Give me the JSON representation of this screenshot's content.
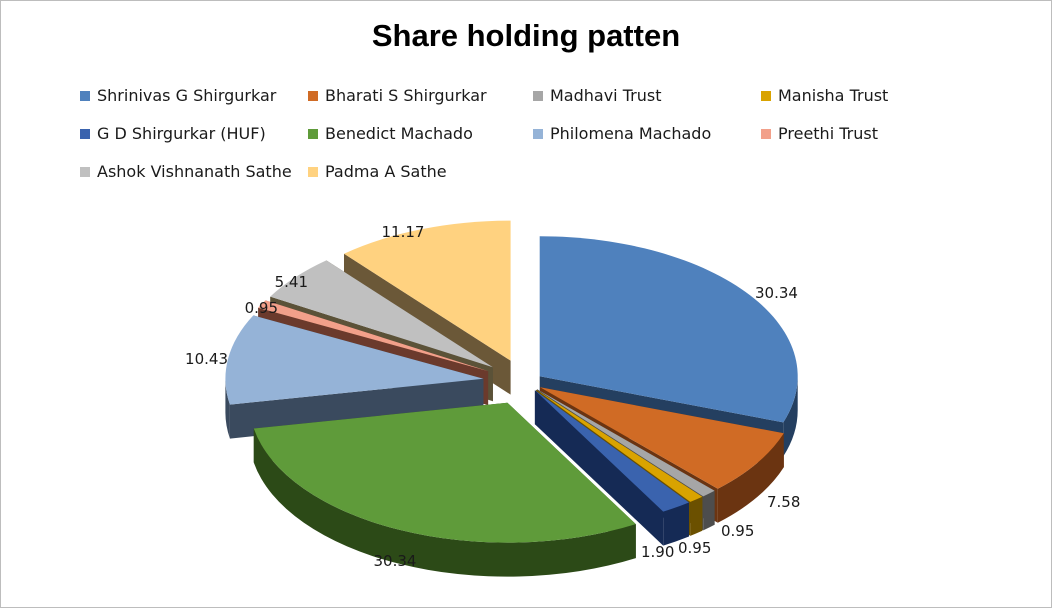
{
  "chart_data": {
    "type": "pie",
    "title": "Share holding patten",
    "legend_position": "top",
    "slices": [
      {
        "label": "Shrinivas G Shirgurkar",
        "value": 30.34,
        "value_label": "30.34",
        "color": "#4F81BD",
        "side": "#243F60",
        "explode": 0
      },
      {
        "label": "Bharati S Shirgurkar",
        "value": 7.58,
        "value_label": "7.58",
        "color": "#D06B25",
        "side": "#6B3411",
        "explode": 0
      },
      {
        "label": "Madhavi Trust",
        "value": 0.95,
        "value_label": "0.95",
        "color": "#A6A6A6",
        "side": "#4D4D4D",
        "explode": 0
      },
      {
        "label": "Manisha Trust",
        "value": 0.95,
        "value_label": "0.95",
        "color": "#D9A300",
        "side": "#6B5000",
        "explode": 0
      },
      {
        "label": "G D Shirgurkar (HUF)",
        "value": 1.9,
        "value_label": "1.90",
        "color": "#3A63AE",
        "side": "#152A55",
        "explode": 0
      },
      {
        "label": "Benedict Machado",
        "value": 30.34,
        "value_label": "30.34",
        "color": "#5F9B3A",
        "side": "#2C4A17",
        "explode": 1
      },
      {
        "label": "Philomena Machado",
        "value": 10.43,
        "value_label": "10.43",
        "color": "#95B3D7",
        "side": "#3A4A5E",
        "explode": 1
      },
      {
        "label": "Preethi Trust",
        "value": 0.95,
        "value_label": "0.95",
        "color": "#F2A08A",
        "side": "#6B3A2C",
        "explode": 1
      },
      {
        "label": "Ashok Vishnanath Sathe",
        "value": 5.41,
        "value_label": "5.41",
        "color": "#C0C0C0",
        "side": "#5B5238",
        "explode": 1
      },
      {
        "label": "Padma A Sathe",
        "value": 11.17,
        "value_label": "11.17",
        "color": "#FFD280",
        "side": "#6B5838",
        "explode": 1
      }
    ]
  }
}
